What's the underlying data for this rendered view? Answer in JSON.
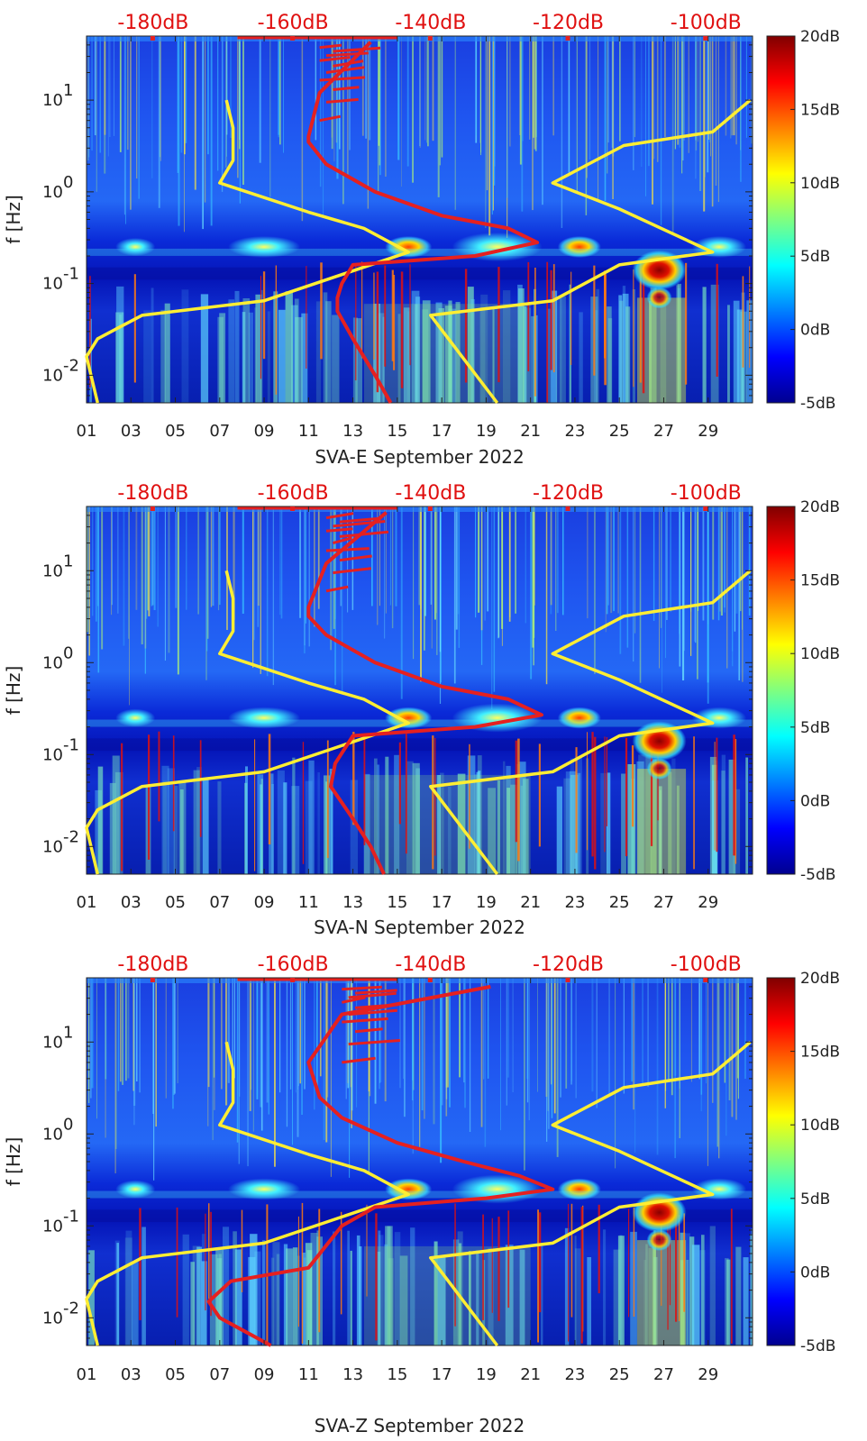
{
  "chart_data": [
    {
      "type": "heatmap",
      "title": "",
      "xlabel": "SVA-E September 2022",
      "ylabel": "f [Hz]",
      "yscale": "log",
      "ylim": [
        0.005,
        50
      ],
      "xlim": [
        1,
        31
      ],
      "x_ticks": [
        "01",
        "03",
        "05",
        "07",
        "09",
        "11",
        "13",
        "15",
        "17",
        "19",
        "21",
        "23",
        "25",
        "27",
        "29"
      ],
      "y_ticks": [
        "10^-2",
        "10^-1",
        "10^0",
        "10^1"
      ],
      "top_axis_ticks": [
        "-180dB",
        "-160dB",
        "-140dB",
        "-120dB",
        "-100dB"
      ],
      "colorbar_ticks": [
        "-5dB",
        "0dB",
        "5dB",
        "10dB",
        "15dB",
        "20dB"
      ],
      "colorbar_range": [
        -5,
        20
      ],
      "series": [
        {
          "color": "#ffee33",
          "style": "NLNM",
          "points": [
            [
              7.3,
              10
            ],
            [
              7.6,
              5
            ],
            [
              7.6,
              2.2
            ],
            [
              7.0,
              1.25
            ],
            [
              11.0,
              0.6
            ],
            [
              13.5,
              0.4
            ],
            [
              15.5,
              0.22
            ],
            [
              9.0,
              0.065
            ],
            [
              3.5,
              0.045
            ],
            [
              1.5,
              0.025
            ],
            [
              1.0,
              0.016
            ],
            [
              1.5,
              0.005
            ]
          ]
        },
        {
          "color": "#ffee33",
          "style": "NHNM",
          "points": [
            [
              30.9,
              10
            ],
            [
              29.2,
              4.5
            ],
            [
              25.2,
              3.2
            ],
            [
              22.0,
              1.25
            ],
            [
              25.0,
              0.65
            ],
            [
              29.2,
              0.22
            ],
            [
              25.0,
              0.16
            ],
            [
              22.0,
              0.065
            ],
            [
              16.5,
              0.045
            ],
            [
              19.5,
              0.005
            ]
          ]
        },
        {
          "color": "#e52020",
          "style": "median",
          "points": [
            [
              13.8,
              43
            ],
            [
              11.5,
              12
            ],
            [
              11.0,
              4
            ],
            [
              11.0,
              3.5
            ],
            [
              11.8,
              2.0
            ],
            [
              14.0,
              1.0
            ],
            [
              17.0,
              0.55
            ],
            [
              20.0,
              0.4
            ],
            [
              21.3,
              0.28
            ],
            [
              18.5,
              0.2
            ],
            [
              13.0,
              0.16
            ],
            [
              12.5,
              0.1
            ],
            [
              12.3,
              0.07
            ],
            [
              12.3,
              0.05
            ],
            [
              13.0,
              0.025
            ],
            [
              14.0,
              0.01
            ],
            [
              14.7,
              0.005
            ]
          ]
        }
      ]
    },
    {
      "type": "heatmap",
      "title": "",
      "xlabel": "SVA-N September 2022",
      "ylabel": "f [Hz]",
      "yscale": "log",
      "ylim": [
        0.005,
        50
      ],
      "xlim": [
        1,
        31
      ],
      "x_ticks": [
        "01",
        "03",
        "05",
        "07",
        "09",
        "11",
        "13",
        "15",
        "17",
        "19",
        "21",
        "23",
        "25",
        "27",
        "29"
      ],
      "y_ticks": [
        "10^-2",
        "10^-1",
        "10^0",
        "10^1"
      ],
      "top_axis_ticks": [
        "-180dB",
        "-160dB",
        "-140dB",
        "-120dB",
        "-100dB"
      ],
      "colorbar_ticks": [
        "-5dB",
        "0dB",
        "5dB",
        "10dB",
        "15dB",
        "20dB"
      ],
      "colorbar_range": [
        -5,
        20
      ],
      "series": [
        {
          "color": "#ffee33",
          "style": "NLNM",
          "points": [
            [
              7.3,
              10
            ],
            [
              7.6,
              5
            ],
            [
              7.6,
              2.2
            ],
            [
              7.0,
              1.25
            ],
            [
              11.0,
              0.6
            ],
            [
              13.5,
              0.4
            ],
            [
              15.5,
              0.22
            ],
            [
              9.0,
              0.065
            ],
            [
              3.5,
              0.045
            ],
            [
              1.5,
              0.025
            ],
            [
              1.0,
              0.016
            ],
            [
              1.5,
              0.005
            ]
          ]
        },
        {
          "color": "#ffee33",
          "style": "NHNM",
          "points": [
            [
              30.9,
              10
            ],
            [
              29.2,
              4.5
            ],
            [
              25.2,
              3.2
            ],
            [
              22.0,
              1.25
            ],
            [
              25.0,
              0.65
            ],
            [
              29.2,
              0.22
            ],
            [
              25.0,
              0.16
            ],
            [
              22.0,
              0.065
            ],
            [
              16.5,
              0.045
            ],
            [
              19.5,
              0.005
            ]
          ]
        },
        {
          "color": "#e52020",
          "style": "median",
          "points": [
            [
              14.5,
              43
            ],
            [
              11.8,
              12
            ],
            [
              11.0,
              4
            ],
            [
              11.0,
              3.2
            ],
            [
              11.8,
              2.0
            ],
            [
              14.0,
              1.0
            ],
            [
              17.0,
              0.55
            ],
            [
              20.0,
              0.4
            ],
            [
              21.5,
              0.27
            ],
            [
              18.5,
              0.2
            ],
            [
              13.0,
              0.16
            ],
            [
              12.2,
              0.08
            ],
            [
              12.0,
              0.045
            ],
            [
              13.0,
              0.02
            ],
            [
              13.8,
              0.01
            ],
            [
              14.4,
              0.005
            ]
          ]
        }
      ]
    },
    {
      "type": "heatmap",
      "title": "",
      "xlabel": "SVA-Z September 2022",
      "ylabel": "f [Hz]",
      "yscale": "log",
      "ylim": [
        0.005,
        50
      ],
      "xlim": [
        1,
        31
      ],
      "x_ticks": [
        "01",
        "03",
        "05",
        "07",
        "09",
        "11",
        "13",
        "15",
        "17",
        "19",
        "21",
        "23",
        "25",
        "27",
        "29"
      ],
      "y_ticks": [
        "10^-2",
        "10^-1",
        "10^0",
        "10^1"
      ],
      "top_axis_ticks": [
        "-180dB",
        "-160dB",
        "-140dB",
        "-120dB",
        "-100dB"
      ],
      "colorbar_ticks": [
        "-5dB",
        "0dB",
        "5dB",
        "10dB",
        "15dB",
        "20dB"
      ],
      "colorbar_range": [
        -5,
        20
      ],
      "series": [
        {
          "color": "#ffee33",
          "style": "NLNM",
          "points": [
            [
              7.3,
              10
            ],
            [
              7.6,
              5
            ],
            [
              7.6,
              2.2
            ],
            [
              7.0,
              1.25
            ],
            [
              11.0,
              0.6
            ],
            [
              13.5,
              0.4
            ],
            [
              15.5,
              0.22
            ],
            [
              9.0,
              0.065
            ],
            [
              3.5,
              0.045
            ],
            [
              1.5,
              0.025
            ],
            [
              1.0,
              0.016
            ],
            [
              1.5,
              0.005
            ]
          ]
        },
        {
          "color": "#ffee33",
          "style": "NHNM",
          "points": [
            [
              30.9,
              10
            ],
            [
              29.2,
              4.5
            ],
            [
              25.2,
              3.2
            ],
            [
              22.0,
              1.25
            ],
            [
              25.0,
              0.65
            ],
            [
              29.2,
              0.22
            ],
            [
              25.0,
              0.16
            ],
            [
              22.0,
              0.065
            ],
            [
              16.5,
              0.045
            ],
            [
              19.5,
              0.005
            ]
          ]
        },
        {
          "color": "#e52020",
          "style": "median",
          "points": [
            [
              19.2,
              40
            ],
            [
              12.5,
              20
            ],
            [
              11.0,
              6
            ],
            [
              11.5,
              2.5
            ],
            [
              12.5,
              1.5
            ],
            [
              15.0,
              0.8
            ],
            [
              18.0,
              0.5
            ],
            [
              20.5,
              0.35
            ],
            [
              22.0,
              0.25
            ],
            [
              19.0,
              0.2
            ],
            [
              14.0,
              0.16
            ],
            [
              12.5,
              0.1
            ],
            [
              11.0,
              0.035
            ],
            [
              7.5,
              0.025
            ],
            [
              6.5,
              0.015
            ],
            [
              7.0,
              0.01
            ],
            [
              9.3,
              0.005
            ]
          ]
        }
      ]
    }
  ]
}
